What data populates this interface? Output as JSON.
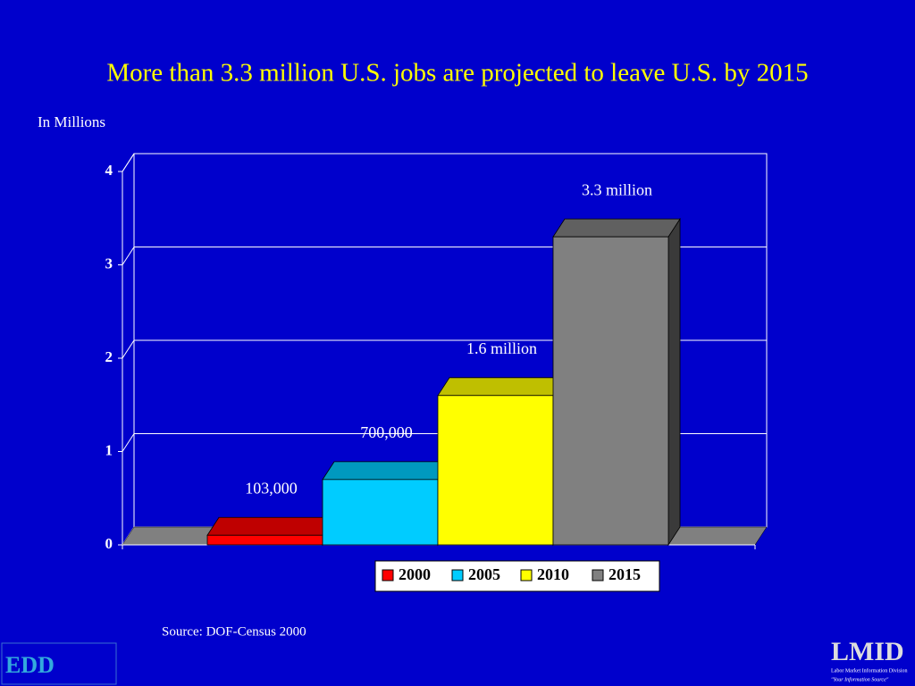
{
  "chart_data": {
    "type": "bar3d",
    "title": "More than 3.3 million U.S. jobs are projected to leave U.S. by 2015",
    "y_label": "In Millions",
    "source": "Source:  DOF-Census 2000",
    "series": [
      {
        "name": "2000",
        "color": "#ff0000",
        "values": [
          0.103
        ],
        "value_labels": [
          "103,000"
        ]
      },
      {
        "name": "2005",
        "color": "#00ccff",
        "values": [
          0.7
        ],
        "value_labels": [
          "700,000"
        ]
      },
      {
        "name": "2010",
        "color": "#ffff00",
        "values": [
          1.6
        ],
        "value_labels": [
          "1.6 million"
        ]
      },
      {
        "name": "2015",
        "color": "#808080",
        "values": [
          3.3
        ],
        "value_labels": [
          "3.3 million"
        ]
      }
    ],
    "ylim": [
      0,
      4
    ],
    "yticks": [
      0,
      1,
      2,
      3,
      4
    ],
    "grid": true,
    "legend": "bottom"
  },
  "logos": {
    "left": "EDD",
    "right": "LMID",
    "right_sub": "Labor Market Information Division",
    "right_tagline": "\"Your Information Source\""
  }
}
